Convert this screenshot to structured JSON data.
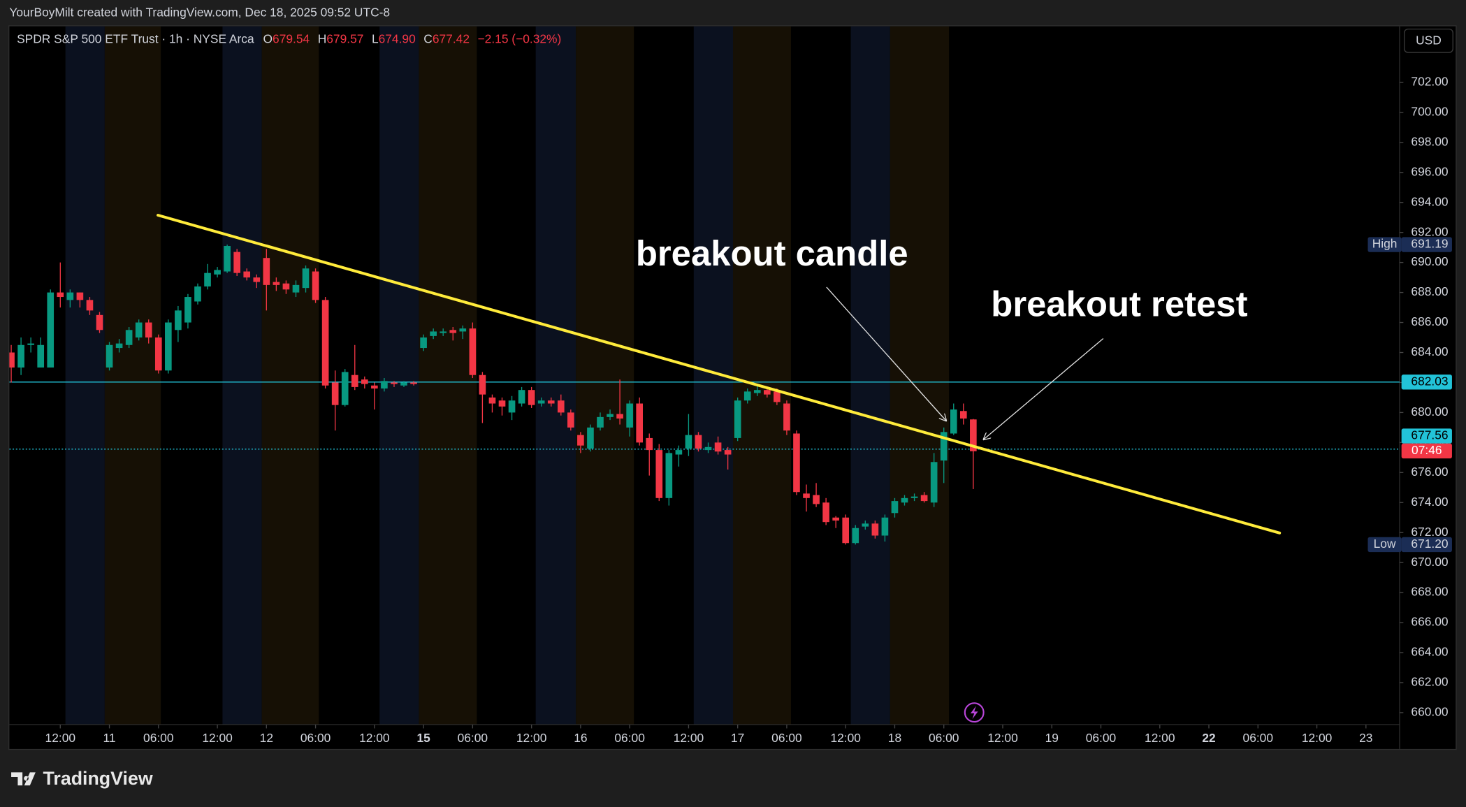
{
  "header": {
    "credit": "YourBoyMilt created with TradingView.com, Dec 18, 2025 09:52 UTC-8",
    "symbol": "SPDR S&P 500 ETF Trust · 1h · NYSE Arca",
    "o_label": "O",
    "o": "679.54",
    "h_label": "H",
    "h": "679.57",
    "l_label": "L",
    "l": "674.90",
    "c_label": "C",
    "c": "677.42",
    "change": "−2.15 (−0.32%)",
    "currency": "USD",
    "logo": "TradingView"
  },
  "chart_data": {
    "type": "candlestick",
    "up_color": "#089981",
    "down_color": "#f23645",
    "x": [
      0,
      1,
      2,
      3,
      4,
      5,
      6,
      7,
      8,
      9,
      10,
      11,
      12,
      13,
      14,
      15,
      16,
      17,
      18,
      19,
      20,
      21,
      22,
      23,
      24,
      25,
      26,
      27,
      28,
      29,
      30,
      31,
      32,
      33,
      34,
      35,
      36,
      37,
      38,
      39,
      40,
      41,
      42,
      43,
      44,
      45,
      46,
      47,
      48,
      49,
      50,
      51,
      52,
      53,
      54,
      55,
      56,
      57,
      58,
      59,
      60,
      61,
      62,
      63,
      64,
      65,
      66,
      67,
      68,
      69,
      70,
      71,
      72,
      73,
      74,
      75,
      76,
      77,
      78,
      79,
      80,
      81,
      82,
      83,
      84,
      85,
      86,
      87,
      88,
      89,
      90,
      91,
      92,
      93,
      94,
      95,
      96,
      97,
      98
    ],
    "open": [
      684,
      683,
      684.5,
      683,
      683,
      688,
      687.5,
      688,
      687.5,
      686.5,
      683,
      684.3,
      684.5,
      685,
      686,
      685,
      682.8,
      685.5,
      686,
      687.4,
      688.4,
      689.2,
      689.4,
      690.7,
      689.4,
      689,
      690.3,
      688.7,
      688.6,
      688,
      688.3,
      689.4,
      687.5,
      682,
      680.5,
      682.5,
      682.2,
      681.8,
      681.6,
      682,
      681.8,
      682,
      684.3,
      685.1,
      685.3,
      685.5,
      685.4,
      685.6,
      682.5,
      681,
      680.8,
      680,
      680.6,
      681.5,
      680.6,
      680.8,
      680.8,
      680,
      678.5,
      677.6,
      679,
      679.7,
      679.9,
      679,
      680.6,
      678.3,
      677.5,
      674.3,
      677.2,
      677.6,
      678.5,
      677.5,
      678,
      677.5,
      678.3,
      680.8,
      681.3,
      681.5,
      681.4,
      680.6,
      678.6,
      674.6,
      674.5,
      674,
      673,
      673,
      671.3,
      672.4,
      672.6,
      671.8,
      673.3,
      674,
      674.3,
      674.5,
      674,
      676.8,
      678.6,
      680.1,
      679.54
    ],
    "high": [
      684.5,
      685,
      685,
      685,
      688.2,
      690,
      688.2,
      688,
      687.7,
      686.7,
      684.7,
      684.9,
      685.7,
      686.2,
      686.2,
      685.2,
      686.2,
      687.1,
      687.9,
      688.6,
      689.9,
      689.7,
      691.19,
      690.9,
      689.6,
      689.2,
      690.9,
      689,
      688.8,
      688.8,
      689.8,
      689.6,
      687.7,
      682.8,
      682.9,
      684.5,
      682.4,
      682,
      682.3,
      682.1,
      682.1,
      682.1,
      685.2,
      685.6,
      685.6,
      685.7,
      685.8,
      686,
      682.7,
      681.2,
      681,
      681.1,
      681.7,
      681.7,
      681,
      681,
      681.2,
      680.2,
      678.7,
      679.2,
      680,
      680.2,
      682.2,
      680.8,
      681,
      678.6,
      677.9,
      677.5,
      677.8,
      679.9,
      678.7,
      678,
      678.4,
      677.7,
      681,
      681.6,
      681.8,
      681.7,
      681.6,
      680.8,
      678.8,
      675.2,
      675.3,
      674.3,
      673.1,
      673.2,
      672.5,
      672.8,
      672.8,
      673.2,
      674.3,
      674.5,
      674.6,
      674.7,
      677.3,
      679,
      680.6,
      680.6,
      679.57
    ],
    "low": [
      682,
      682.5,
      684,
      683,
      683,
      687,
      687,
      687,
      686.5,
      685.3,
      682.8,
      684,
      684.3,
      684.8,
      684.6,
      682.6,
      682.6,
      684.7,
      685.6,
      687.2,
      688.2,
      689,
      689.3,
      689.1,
      688.8,
      688.3,
      686.8,
      688.1,
      687.9,
      687.7,
      688,
      687.3,
      681.6,
      678.8,
      680.4,
      681.5,
      681.6,
      680.2,
      681.4,
      681.7,
      681.7,
      681.8,
      684.1,
      684.9,
      685.1,
      684.8,
      684.9,
      682.3,
      679.3,
      680,
      679.8,
      679.5,
      680.4,
      680.3,
      680.4,
      680.4,
      679.8,
      678.8,
      677.3,
      677.4,
      678.8,
      679.5,
      679.2,
      678.4,
      677.8,
      675.8,
      674.1,
      673.8,
      676.4,
      677.1,
      677.4,
      677.3,
      677.2,
      676.2,
      678.1,
      680.6,
      681.1,
      681,
      680.5,
      678.5,
      674.5,
      673.4,
      673.7,
      672.5,
      672.3,
      671.2,
      671.2,
      672.2,
      671.6,
      671.4,
      673,
      673.8,
      674.1,
      674,
      673.7,
      675.3,
      678.5,
      679.2,
      674.9
    ],
    "close": [
      683,
      684.5,
      684.6,
      684.5,
      688,
      687.7,
      688,
      687.5,
      686.8,
      685.5,
      684.5,
      684.6,
      685.5,
      686,
      685,
      682.8,
      686,
      686.8,
      687.7,
      688.4,
      689.3,
      689.5,
      691.1,
      689.3,
      689,
      688.7,
      688.5,
      688.5,
      688.2,
      688.5,
      689.6,
      687.5,
      681.8,
      680.5,
      682.7,
      681.7,
      681.9,
      681.6,
      682.1,
      681.9,
      682,
      681.9,
      685,
      685.4,
      685.4,
      685.3,
      685.6,
      682.5,
      681.2,
      680.6,
      680.4,
      680.8,
      681.5,
      680.5,
      680.8,
      680.6,
      680,
      679,
      677.8,
      679,
      679.7,
      679.9,
      679.6,
      680.6,
      678,
      677.5,
      674.3,
      677.3,
      677.5,
      678.5,
      677.6,
      677.7,
      677.4,
      677.2,
      680.8,
      681.4,
      681.5,
      681.2,
      680.7,
      678.8,
      674.7,
      674.3,
      673.9,
      672.7,
      672.8,
      671.3,
      672.3,
      672.6,
      671.8,
      673,
      674.1,
      674.3,
      674.4,
      674.1,
      676.7,
      678.7,
      680.2,
      679.6,
      677.42
    ],
    "xlim": [
      -0.19,
      141.43
    ],
    "ylim": [
      659.2,
      705.74
    ],
    "xticks": [
      {
        "value": 5,
        "label": "12:00"
      },
      {
        "value": 10,
        "label": "11"
      },
      {
        "value": 15,
        "label": "06:00"
      },
      {
        "value": 21,
        "label": "12:00"
      },
      {
        "value": 26,
        "label": "12"
      },
      {
        "value": 31,
        "label": "06:00"
      },
      {
        "value": 37,
        "label": "12:00"
      },
      {
        "value": 42,
        "label": "15",
        "bold": true
      },
      {
        "value": 47,
        "label": "06:00"
      },
      {
        "value": 53,
        "label": "12:00"
      },
      {
        "value": 58,
        "label": "16"
      },
      {
        "value": 63,
        "label": "06:00"
      },
      {
        "value": 69,
        "label": "12:00"
      },
      {
        "value": 74,
        "label": "17"
      },
      {
        "value": 79,
        "label": "06:00"
      },
      {
        "value": 85,
        "label": "12:00"
      },
      {
        "value": 90,
        "label": "18"
      },
      {
        "value": 95,
        "label": "06:00"
      },
      {
        "value": 101,
        "label": "12:00"
      },
      {
        "value": 106,
        "label": "19"
      },
      {
        "value": 111,
        "label": "06:00"
      },
      {
        "value": 117,
        "label": "12:00"
      },
      {
        "value": 122,
        "label": "22",
        "bold": true
      },
      {
        "value": 127,
        "label": "06:00"
      },
      {
        "value": 133,
        "label": "12:00"
      },
      {
        "value": 138,
        "label": "23"
      }
    ],
    "yticks": [
      {
        "value": 660,
        "label": "660.00"
      },
      {
        "value": 662,
        "label": "662.00"
      },
      {
        "value": 664,
        "label": "664.00"
      },
      {
        "value": 666,
        "label": "666.00"
      },
      {
        "value": 668,
        "label": "668.00"
      },
      {
        "value": 670,
        "label": "670.00"
      },
      {
        "value": 672,
        "label": "672.00"
      },
      {
        "value": 674,
        "label": "674.00"
      },
      {
        "value": 676,
        "label": "676.00"
      },
      {
        "value": 678,
        "label": "678.00"
      },
      {
        "value": 680,
        "label": "680.00"
      },
      {
        "value": 682,
        "label": "682.00"
      },
      {
        "value": 684,
        "label": "684.00"
      },
      {
        "value": 686,
        "label": "686.00"
      },
      {
        "value": 688,
        "label": "688.00"
      },
      {
        "value": 690,
        "label": "690.00"
      },
      {
        "value": 692,
        "label": "692.00"
      },
      {
        "value": 694,
        "label": "694.00"
      },
      {
        "value": 696,
        "label": "696.00"
      },
      {
        "value": 698,
        "label": "698.00"
      },
      {
        "value": 700,
        "label": "700.00"
      },
      {
        "value": 702,
        "label": "702.00"
      }
    ],
    "price_lines": [
      {
        "value": 682.03,
        "color": "#22c3d8",
        "dotted": false
      },
      {
        "value": 677.56,
        "color": "#22c3d8",
        "dotted": true
      }
    ],
    "countdown": "07:46",
    "extremes": [
      {
        "name": "High",
        "value": 691.19,
        "label": "691.19"
      },
      {
        "name": "Low",
        "value": 671.2,
        "label": "671.20"
      }
    ],
    "trendline": {
      "x": [
        14.95,
        129.2
      ],
      "y": [
        693.15,
        671.97
      ],
      "color": "#ffeb3b"
    },
    "annotations": [
      "breakout candle",
      "breakout retest"
    ]
  }
}
